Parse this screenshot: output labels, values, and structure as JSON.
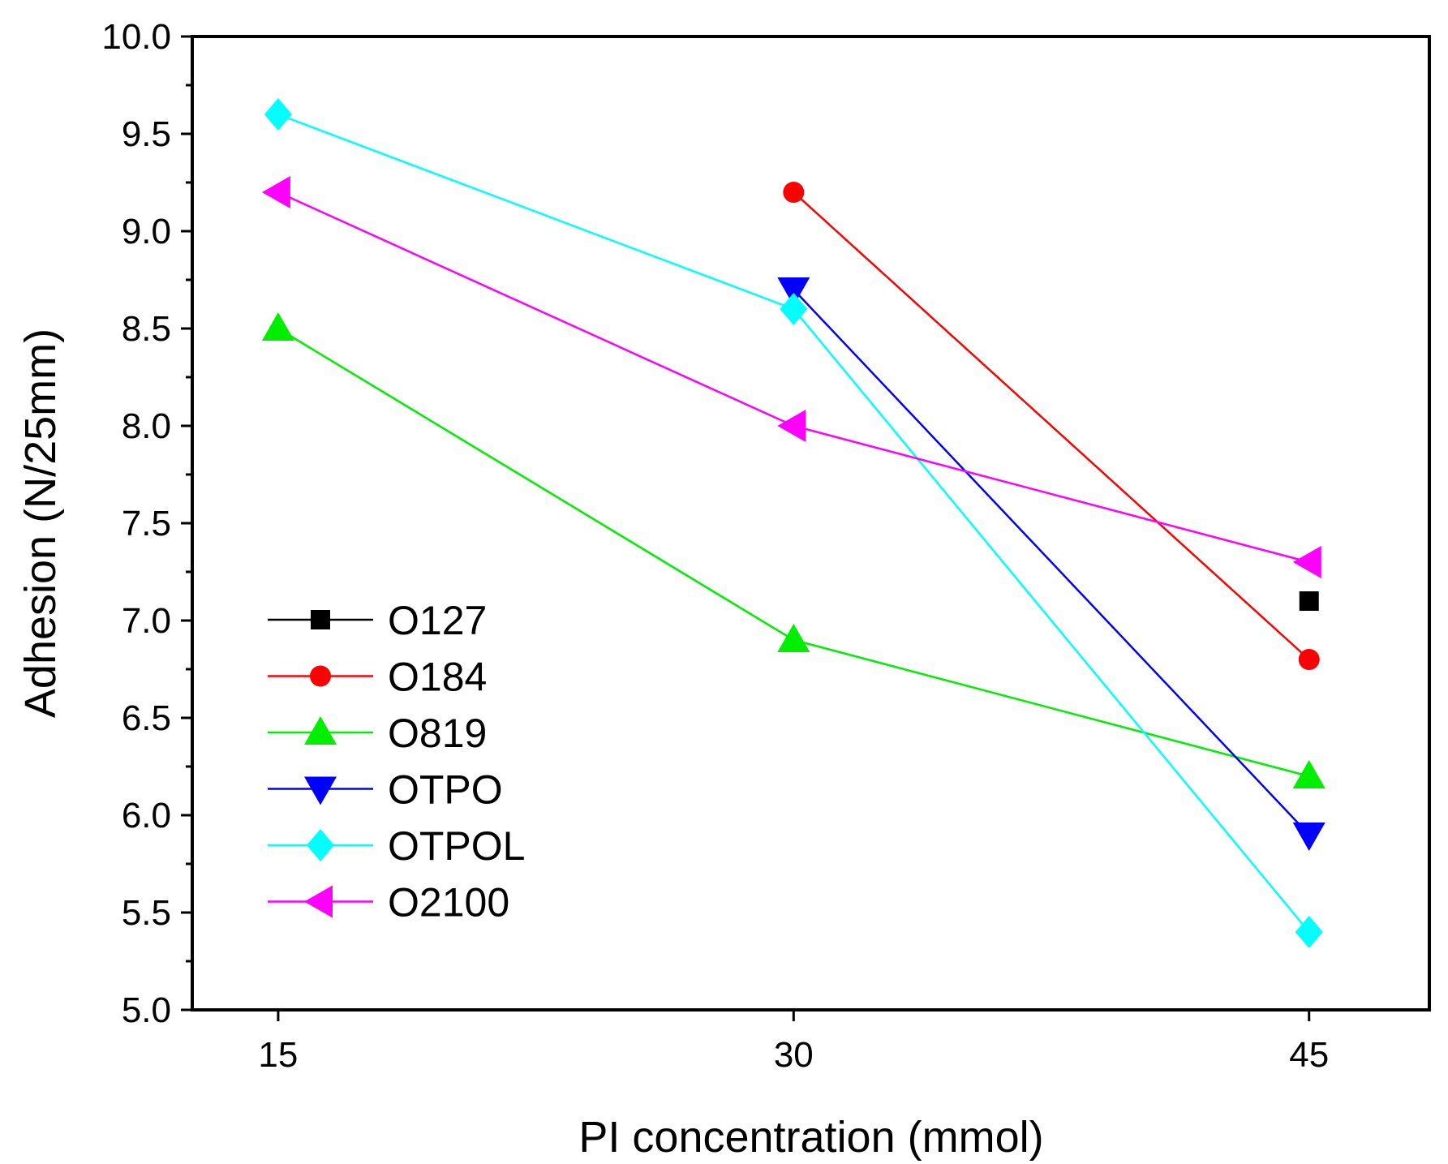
{
  "chart_data": {
    "type": "line",
    "title": "",
    "xlabel": "PI concentration (mmol)",
    "ylabel": "Adhesion (N/25mm)",
    "x": [
      15,
      30,
      45
    ],
    "xticks": [
      "15",
      "30",
      "45"
    ],
    "xlim": [
      12.5,
      48.5
    ],
    "ylim": [
      5.0,
      10.0
    ],
    "yticks": [
      "5.0",
      "5.5",
      "6.0",
      "6.5",
      "7.0",
      "7.5",
      "8.0",
      "8.5",
      "9.0",
      "9.5",
      "10.0"
    ],
    "legend_position": "bottom-left",
    "series": [
      {
        "name": "O127",
        "color": "#000000",
        "marker": "square",
        "values": [
          null,
          null,
          7.1
        ]
      },
      {
        "name": "O184",
        "color": "#ff0000",
        "marker": "circle",
        "values": [
          null,
          9.2,
          6.8
        ]
      },
      {
        "name": "O819",
        "color": "#00ee00",
        "marker": "triangle-up",
        "values": [
          8.5,
          6.9,
          6.2
        ]
      },
      {
        "name": "OTPO",
        "color": "#0000ff",
        "marker": "triangle-down",
        "values": [
          null,
          8.7,
          5.9
        ]
      },
      {
        "name": "OTPOL",
        "color": "#00ffff",
        "marker": "diamond",
        "values": [
          9.6,
          8.6,
          5.4
        ]
      },
      {
        "name": "O2100",
        "color": "#ff00ff",
        "marker": "triangle-left",
        "values": [
          9.2,
          8.0,
          7.3
        ]
      }
    ]
  }
}
